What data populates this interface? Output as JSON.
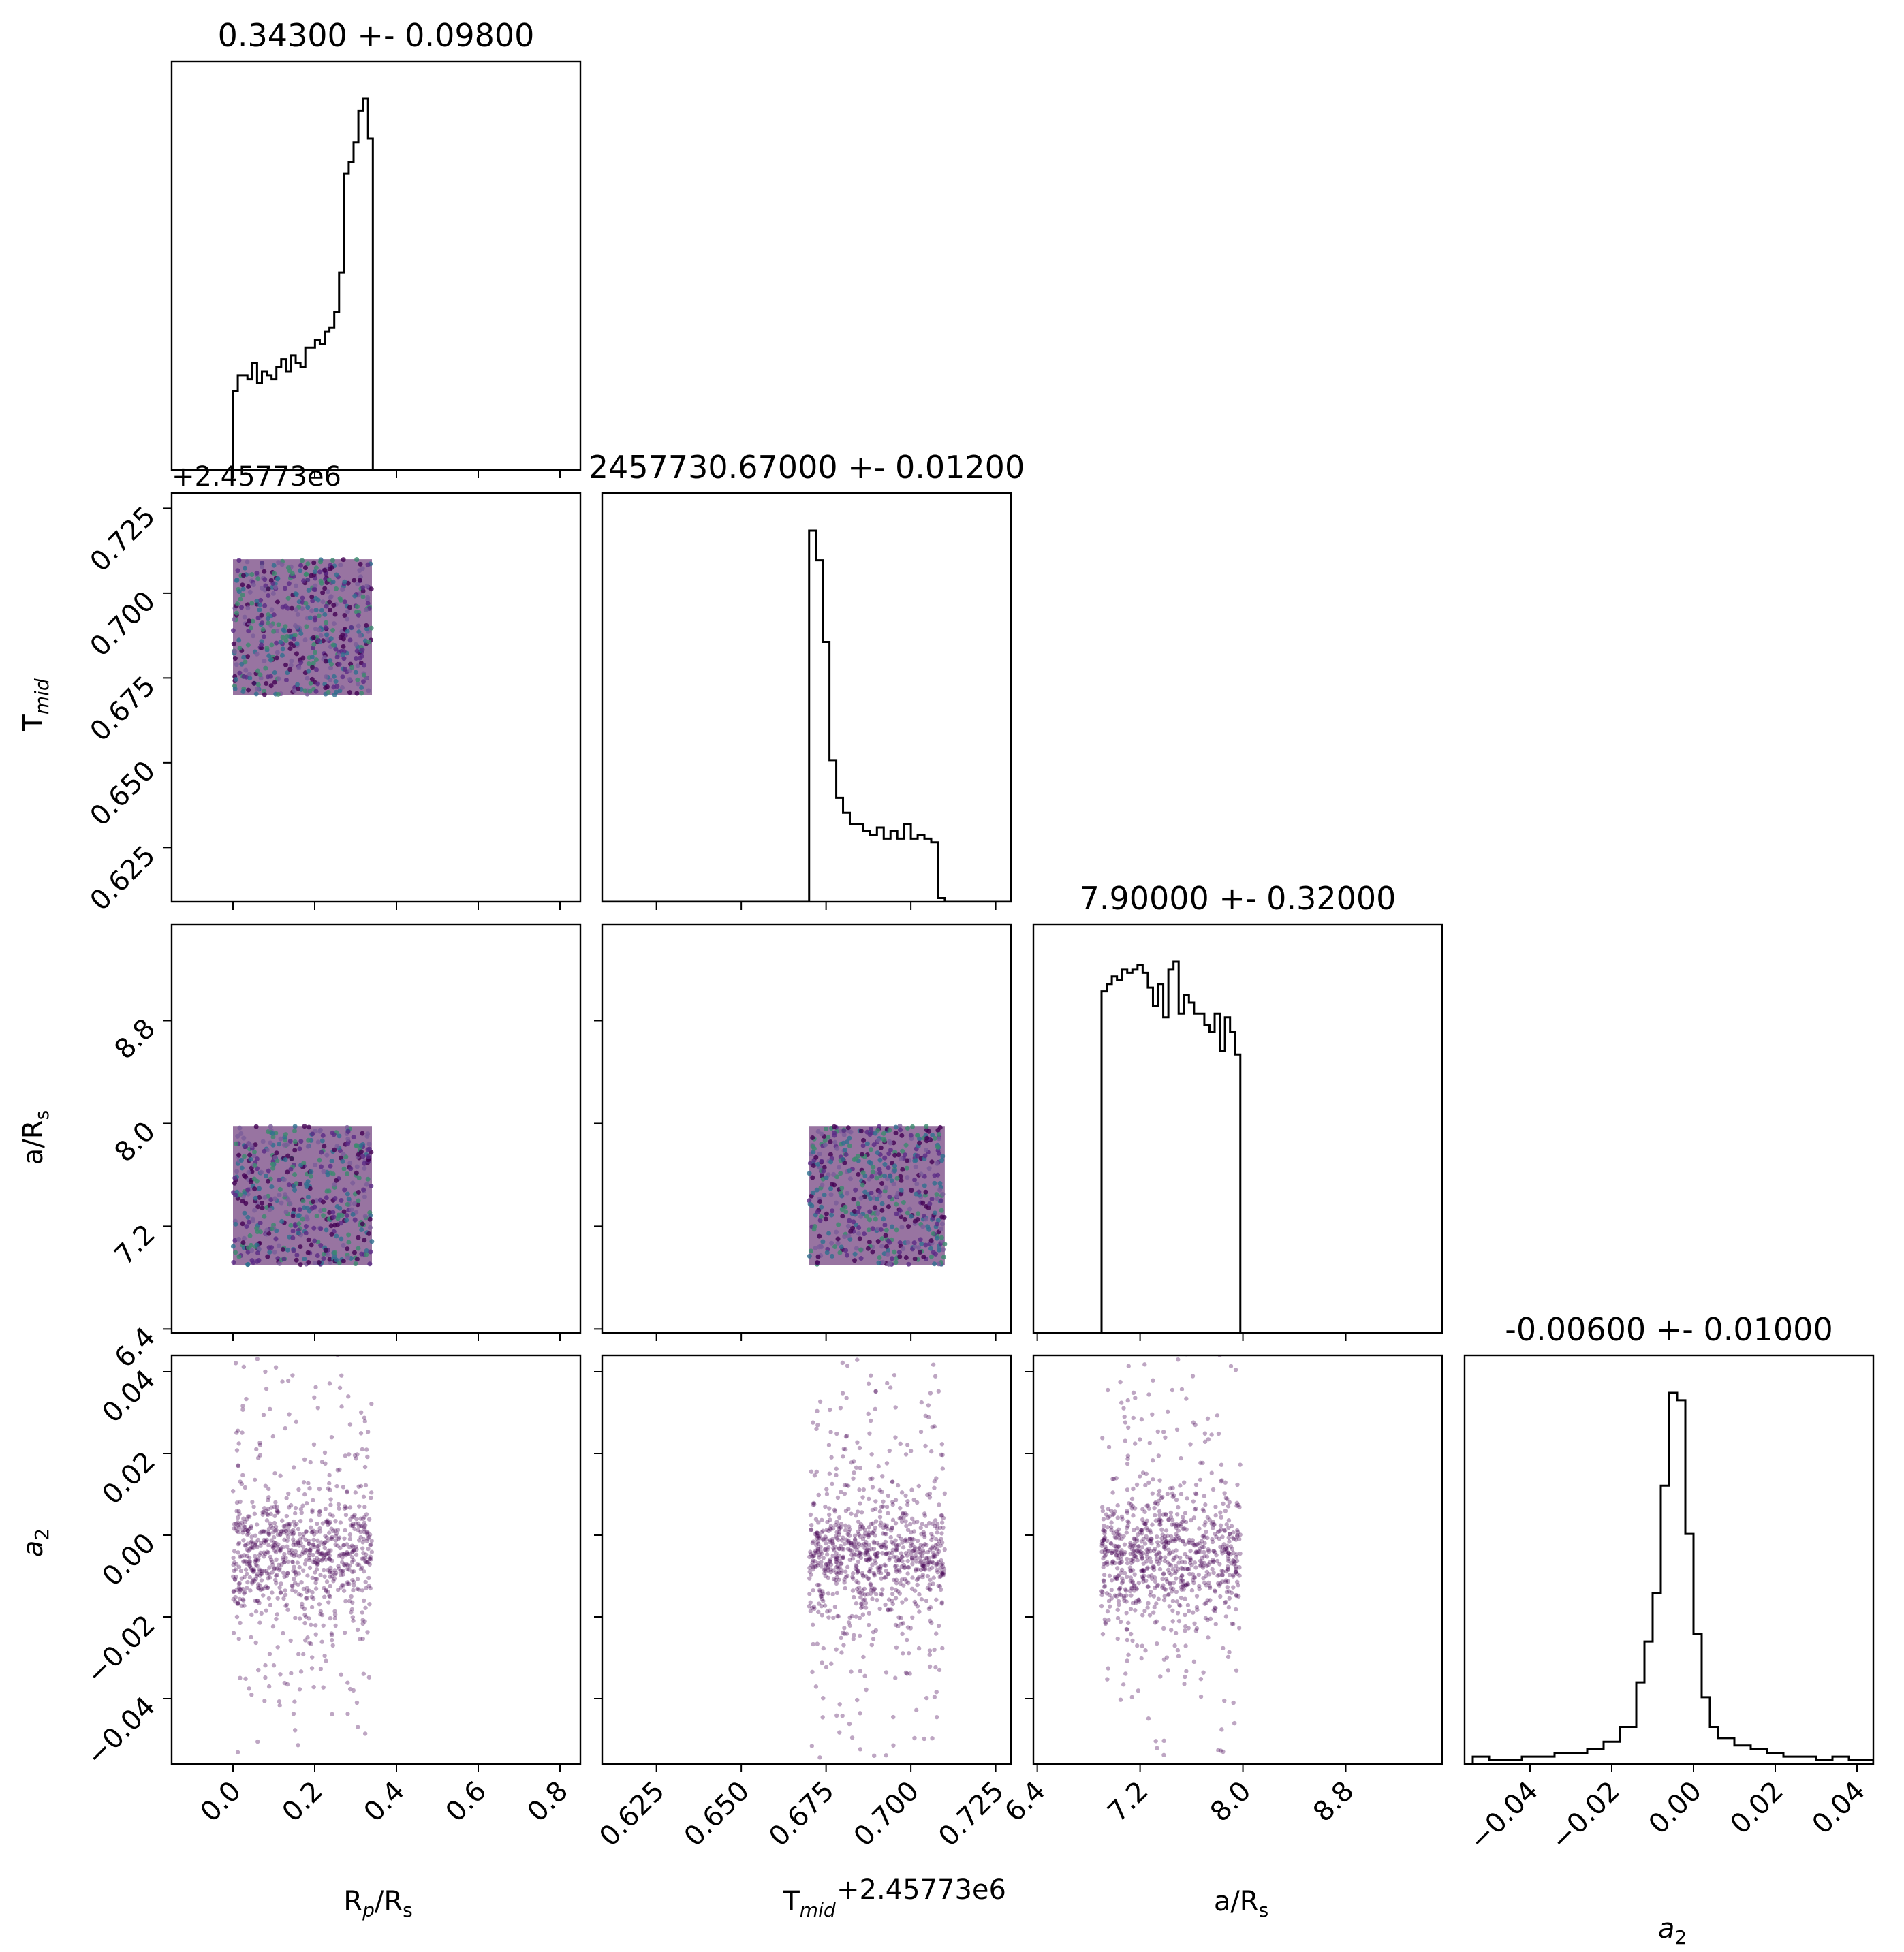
{
  "chart_data": {
    "type": "scatter",
    "kind": "corner-plot",
    "parameters": [
      {
        "key": "rp",
        "label": "R_p/R_s",
        "range": [
          -0.15,
          0.85
        ],
        "ticks": [
          0.0,
          0.2,
          0.4,
          0.6,
          0.8
        ],
        "tick_labels": [
          "0.0",
          "0.2",
          "0.4",
          "0.6",
          "0.8"
        ],
        "title": "0.34300 +- 0.09800"
      },
      {
        "key": "tmid",
        "label": "T_mid",
        "range": [
          0.609,
          0.7295
        ],
        "ticks": [
          0.625,
          0.65,
          0.675,
          0.7,
          0.725
        ],
        "tick_labels": [
          "0.625",
          "0.650",
          "0.675",
          "0.700",
          "0.725"
        ],
        "offset_label": "+2.45773e6",
        "title": "2457730.67000 +- 0.01200"
      },
      {
        "key": "ars",
        "label": "a/R_s",
        "range": [
          6.37,
          9.55
        ],
        "ticks": [
          6.4,
          7.2,
          8.0,
          8.8
        ],
        "tick_labels": [
          "6.4",
          "7.2",
          "8.0",
          "8.8"
        ],
        "title": "7.90000 +- 0.32000"
      },
      {
        "key": "a2",
        "label": "a_2",
        "range": [
          -0.056,
          0.044
        ],
        "ticks": [
          -0.04,
          -0.02,
          0.0,
          0.02,
          0.04
        ],
        "tick_labels": [
          "−0.04",
          "−0.02",
          "0.00",
          "0.02",
          "0.04"
        ],
        "title": "-0.00600 +- 0.01000"
      }
    ],
    "histograms": {
      "rp": {
        "edges": [
          0.0,
          0.0118,
          0.0236,
          0.0354,
          0.0472,
          0.059,
          0.0708,
          0.0826,
          0.0944,
          0.1062,
          0.118,
          0.1298,
          0.1416,
          0.1534,
          0.1652,
          0.177,
          0.1888,
          0.2006,
          0.2124,
          0.2242,
          0.236,
          0.2478,
          0.2596,
          0.2714,
          0.2832,
          0.295,
          0.3068,
          0.3186,
          0.3304,
          0.3422,
          0.355
        ],
        "counts": [
          20,
          24,
          24,
          23,
          27,
          22,
          25,
          24,
          23,
          26,
          28,
          25,
          29,
          27,
          26,
          31,
          31,
          33,
          32,
          35,
          36,
          40,
          50,
          75,
          78,
          83,
          91,
          94,
          84,
          0
        ]
      },
      "tmid": {
        "edges": [
          0.67,
          0.672,
          0.674,
          0.676,
          0.678,
          0.68,
          0.682,
          0.684,
          0.686,
          0.688,
          0.69,
          0.692,
          0.694,
          0.696,
          0.698,
          0.7,
          0.702,
          0.704,
          0.706,
          0.708,
          0.71
        ],
        "counts": [
          100,
          92,
          70,
          38,
          28,
          24,
          21,
          21,
          19,
          18,
          20,
          17,
          19,
          17,
          21,
          17,
          18,
          17,
          16,
          1
        ]
      },
      "ars": {
        "edges": [
          6.9,
          6.94,
          6.98,
          7.02,
          7.06,
          7.1,
          7.14,
          7.18,
          7.22,
          7.26,
          7.3,
          7.34,
          7.38,
          7.42,
          7.46,
          7.5,
          7.54,
          7.58,
          7.62,
          7.66,
          7.7,
          7.74,
          7.78,
          7.82,
          7.86,
          7.9,
          7.94,
          7.98
        ],
        "counts": [
          92,
          94,
          96,
          95,
          98,
          97,
          98,
          99,
          97,
          93,
          88,
          94,
          85,
          98,
          100,
          86,
          91,
          89,
          86,
          86,
          83,
          81,
          86,
          76,
          85,
          81,
          75
        ]
      },
      "a2": {
        "edges": [
          -0.054,
          -0.05,
          -0.046,
          -0.042,
          -0.038,
          -0.034,
          -0.03,
          -0.026,
          -0.022,
          -0.018,
          -0.014,
          -0.012,
          -0.01,
          -0.008,
          -0.006,
          -0.004,
          -0.002,
          0.0,
          0.002,
          0.004,
          0.006,
          0.01,
          0.014,
          0.018,
          0.022,
          0.026,
          0.03,
          0.034,
          0.038,
          0.042,
          0.044
        ],
        "counts": [
          2,
          1,
          1,
          2,
          2,
          3,
          3,
          4,
          6,
          10,
          22,
          33,
          46,
          75,
          100,
          98,
          62,
          35,
          18,
          10,
          7,
          5,
          4,
          3,
          2,
          2,
          1,
          2,
          1,
          1
        ]
      }
    },
    "scatter_pairs": [
      {
        "x": "rp",
        "y": "tmid",
        "x_range": [
          0.0,
          0.34
        ],
        "y_range": [
          0.67,
          0.71
        ],
        "style": "dense-square"
      },
      {
        "x": "rp",
        "y": "ars",
        "x_range": [
          0.0,
          0.34
        ],
        "y_range": [
          6.9,
          7.98
        ],
        "style": "dense-square"
      },
      {
        "x": "tmid",
        "y": "ars",
        "x_range": [
          0.67,
          0.71
        ],
        "y_range": [
          6.9,
          7.98
        ],
        "style": "dense-square"
      },
      {
        "x": "rp",
        "y": "a2",
        "x_range": [
          0.0,
          0.34
        ],
        "y_center": -0.005,
        "y_sigma": 0.012,
        "style": "points"
      },
      {
        "x": "tmid",
        "y": "a2",
        "x_range": [
          0.67,
          0.71
        ],
        "y_center": -0.005,
        "y_sigma": 0.012,
        "style": "points"
      },
      {
        "x": "ars",
        "y": "a2",
        "x_range": [
          6.9,
          7.98
        ],
        "y_center": -0.005,
        "y_sigma": 0.012,
        "style": "points"
      }
    ],
    "point_color": "#440154",
    "grid": false,
    "legend": "none"
  },
  "axis_labels": {
    "rp": {
      "main": "R",
      "sub1": "p",
      "mid": "/R",
      "sub2": "s"
    },
    "tmid": {
      "main": "T",
      "sub1": "mid"
    },
    "ars": {
      "main": "a/R",
      "sub1": "s"
    },
    "a2": {
      "main": "a",
      "sub1": "2"
    }
  },
  "offset_labels": {
    "left_top": "+2.45773e6",
    "bottom_tmid": "+2.45773e6"
  }
}
